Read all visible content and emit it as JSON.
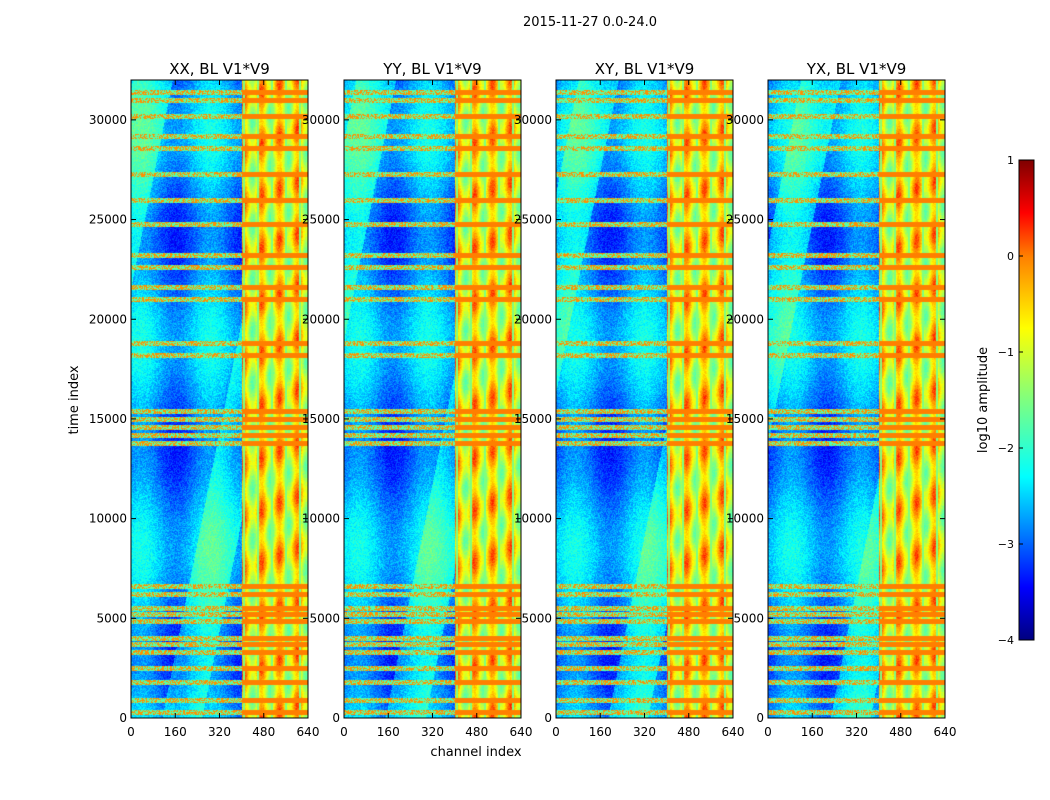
{
  "figure": {
    "suptitle": "2015-11-27 0.0-24.0"
  },
  "chart_data": {
    "type": "heatmap",
    "xlabel": "channel index",
    "ylabel": "time index",
    "xlim": [
      0,
      640
    ],
    "ylim": [
      0,
      32000
    ],
    "xticks": [
      0,
      160,
      320,
      480,
      640
    ],
    "yticks": [
      0,
      5000,
      10000,
      15000,
      20000,
      25000,
      30000
    ],
    "panels": [
      {
        "title": "XX, BL V1*V9"
      },
      {
        "title": "YY, BL V1*V9"
      },
      {
        "title": "XY, BL V1*V9"
      },
      {
        "title": "YX, BL V1*V9"
      }
    ],
    "bright_channel_band": [
      400,
      640
    ],
    "flagged_time_rows": [
      300,
      900,
      1800,
      2500,
      3300,
      3700,
      4000,
      4850,
      5200,
      5500,
      6200,
      6600,
      13800,
      14200,
      14600,
      15000,
      15400,
      18200,
      18800,
      21000,
      21600,
      22600,
      23200,
      24800,
      26000,
      27300,
      28600,
      29200,
      30200,
      31000,
      31400
    ],
    "colorbar": {
      "label": "log10 amplitude",
      "colormap": "jet",
      "range": [
        -4,
        1
      ],
      "ticks": [
        1,
        0,
        -1,
        -2,
        -3,
        -4
      ],
      "tick_labels": [
        "1",
        "0",
        "−1",
        "−2",
        "−3",
        "−4"
      ]
    }
  }
}
